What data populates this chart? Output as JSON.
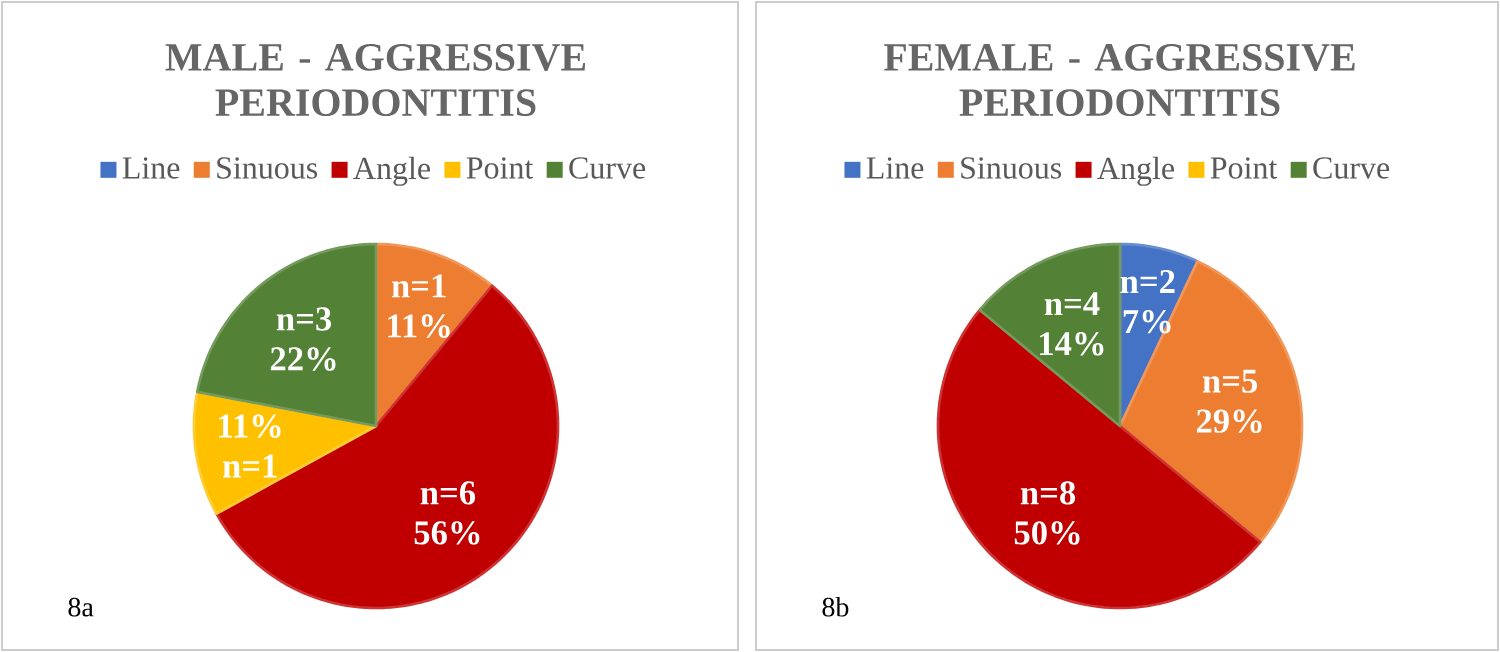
{
  "chart_data": [
    {
      "type": "pie",
      "title": "MALE - AGGRESSIVE PERIODONTITIS",
      "categories": [
        "Line",
        "Sinuous",
        "Angle",
        "Point",
        "Curve"
      ],
      "values": [
        0,
        11,
        56,
        11,
        22
      ],
      "colors": [
        "#4472c4",
        "#ed7d31",
        "#c00000",
        "#ffc000",
        "#538135"
      ],
      "value_labels": [
        null,
        "n=1 11%",
        "n=6 56%",
        "11% n=1",
        "n=3 22%"
      ],
      "legend": "top",
      "annotations": [
        "8a"
      ]
    },
    {
      "type": "pie",
      "title": "FEMALE - AGGRESSIVE PERIODONTITIS",
      "categories": [
        "Line",
        "Sinuous",
        "Angle",
        "Point",
        "Curve"
      ],
      "values": [
        7,
        29,
        50,
        0,
        14
      ],
      "colors": [
        "#4472c4",
        "#ed7d31",
        "#c00000",
        "#ffc000",
        "#538135"
      ],
      "value_labels": [
        "n=2 7%",
        "n=5 29%",
        "n=8 50%",
        null,
        "n=4 14%"
      ],
      "legend": "top",
      "annotations": [
        "8b"
      ]
    }
  ]
}
